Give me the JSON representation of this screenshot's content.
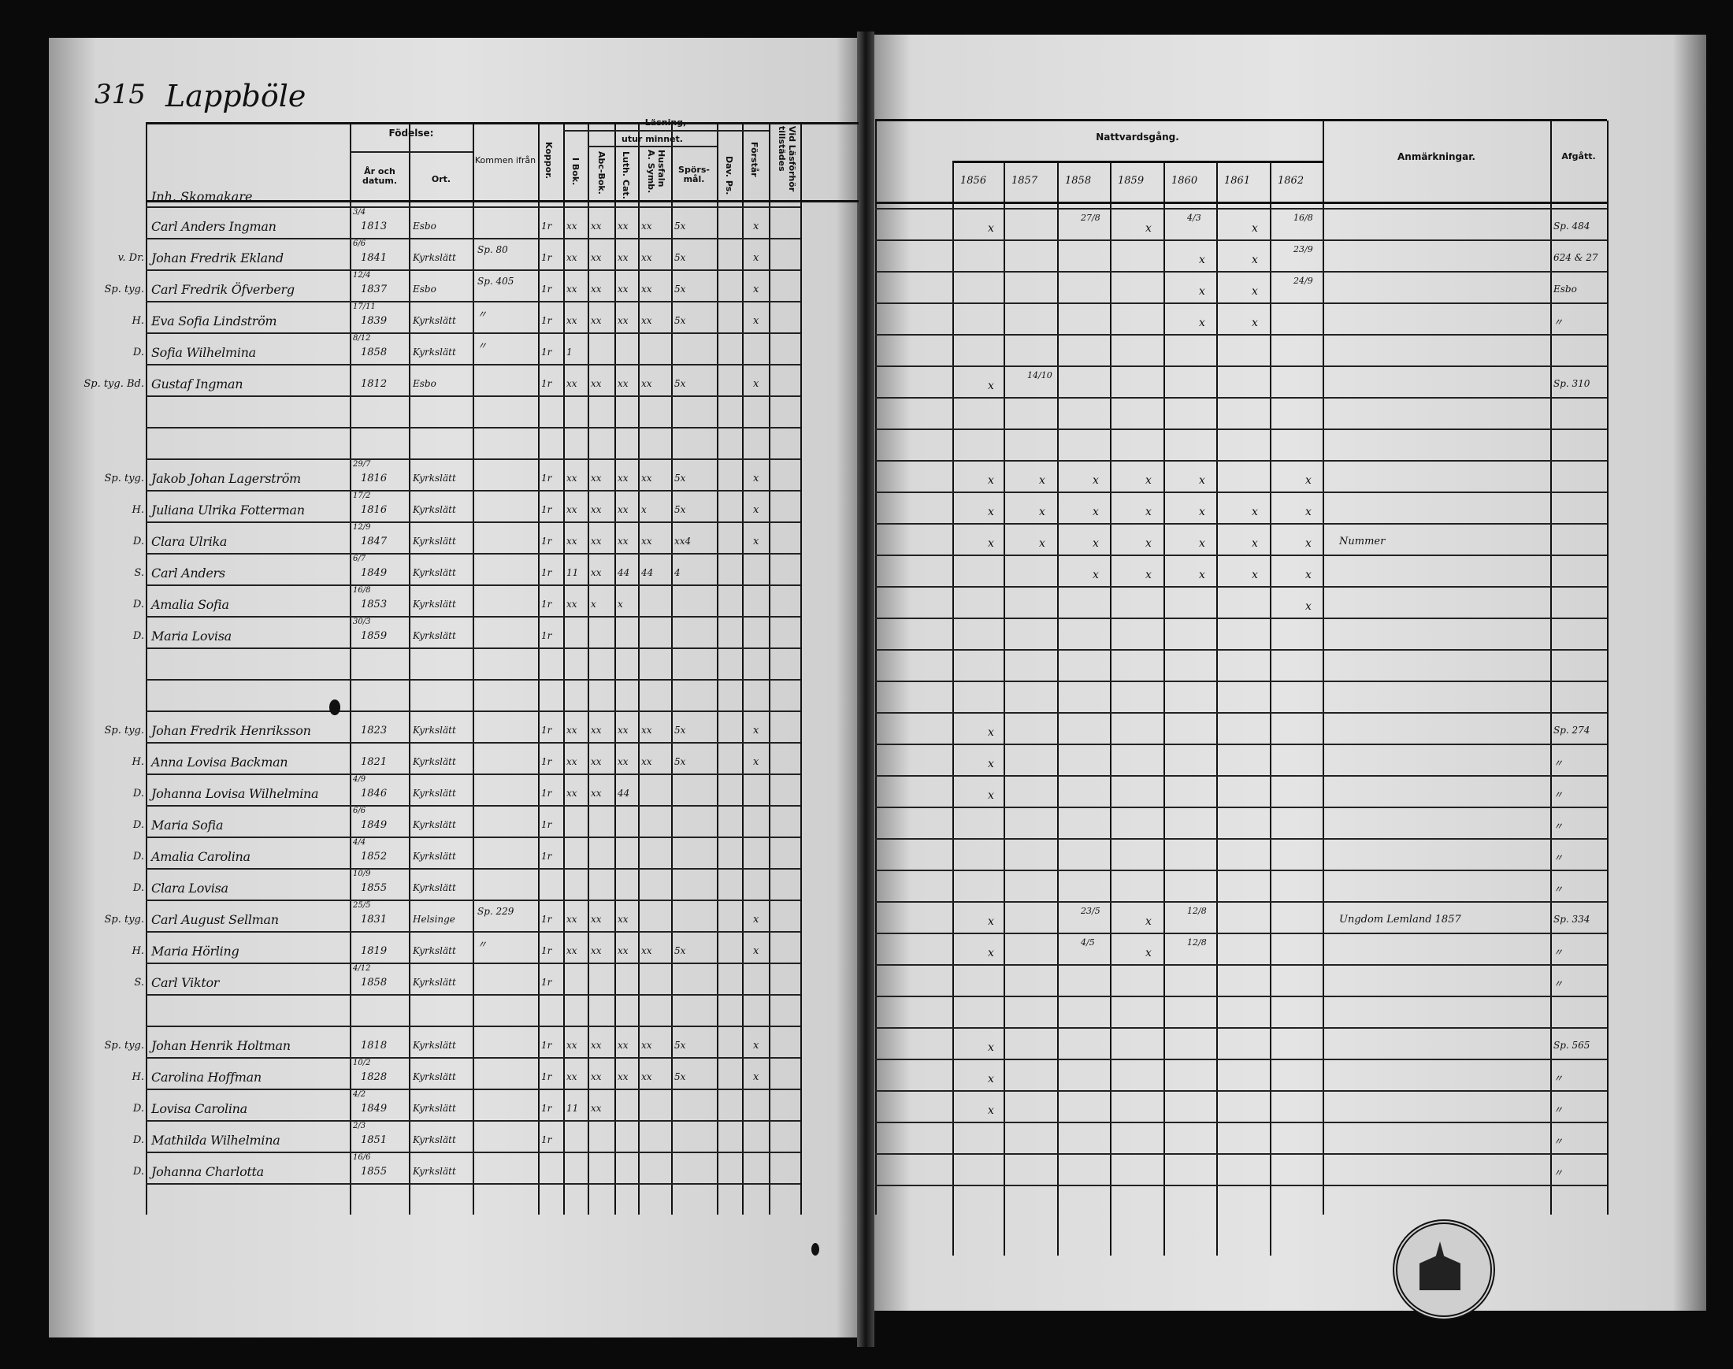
{
  "page_number": "315",
  "village": "Lappböle",
  "left_headers": {
    "fodelse": "Födelse:",
    "ar_datum": "År och datum.",
    "ort": "Ort.",
    "kommen_ifran": "Kommen ifrån",
    "koppor": "Koppor.",
    "lasning": "Läsning,",
    "utur_minnet": "utur minnet.",
    "i_bok": "I Bok.",
    "abc_bok": "Abc-Bok.",
    "luth_cat": "Luth. Cat.",
    "husfaln": "Husfaln A. Symb.",
    "sporsmal": "Spörs-mål.",
    "dav_ps": "Dav. Ps.",
    "forstar": "Förstår",
    "vid_lasforhor": "Vid Läsförhör tillstädes"
  },
  "right_headers": {
    "nattvardsgang": "Nattvardsgång.",
    "years": [
      "1856",
      "1857",
      "1858",
      "1859",
      "1860",
      "1861",
      "1862"
    ],
    "anmarkningar": "Anmärkningar.",
    "afgatt": "Afgått."
  },
  "section_title": "Inh. Skomakare",
  "rows": [
    {
      "line": 1,
      "prefix": "",
      "name": "Carl Anders Ingman",
      "date": "3/4",
      "year": "1813",
      "place": "Esbo",
      "from": "",
      "reading": [
        "1r",
        "xx",
        "xx",
        "xx",
        "xx",
        "5x"
      ],
      "forstar": "x",
      "communion": [
        "x",
        "",
        "27/8",
        "x",
        "4/3",
        "x",
        "16/8"
      ],
      "remark": "",
      "afgatt": "Sp. 484"
    },
    {
      "line": 2,
      "prefix": "v. Dr.",
      "name": "Johan Fredrik Ekland",
      "date": "6/6",
      "year": "1841",
      "place": "Kyrkslätt",
      "from": "Sp. 80",
      "reading": [
        "1r",
        "xx",
        "xx",
        "xx",
        "xx",
        "5x"
      ],
      "forstar": "x",
      "communion": [
        "",
        "",
        "",
        "",
        "x",
        "x",
        "23/9"
      ],
      "remark": "",
      "afgatt": "624 & 27"
    },
    {
      "line": 3,
      "prefix": "Sp. tyg.",
      "name": "Carl Fredrik Öfverberg",
      "date": "12/4",
      "year": "1837",
      "place": "Esbo",
      "from": "Sp. 405",
      "reading": [
        "1r",
        "xx",
        "xx",
        "xx",
        "xx",
        "5x"
      ],
      "forstar": "x",
      "communion": [
        "",
        "",
        "",
        "",
        "x",
        "x",
        "24/9"
      ],
      "remark": "",
      "afgatt": "Esbo"
    },
    {
      "line": 4,
      "prefix": "H.",
      "name": "Eva Sofia Lindström",
      "date": "17/11",
      "year": "1839",
      "place": "Kyrkslätt",
      "from": "〃",
      "reading": [
        "1r",
        "xx",
        "xx",
        "xx",
        "xx",
        "5x"
      ],
      "forstar": "x",
      "communion": [
        "",
        "",
        "",
        "",
        "x",
        "x",
        ""
      ],
      "remark": "",
      "afgatt": "〃"
    },
    {
      "line": 5,
      "prefix": "D.",
      "name": "Sofia Wilhelmina",
      "date": "8/12",
      "year": "1858",
      "place": "Kyrkslätt",
      "from": "〃",
      "reading": [
        "1r",
        "1",
        "",
        "",
        "",
        ""
      ],
      "forstar": "",
      "communion": [
        "",
        "",
        "",
        "",
        "",
        "",
        ""
      ],
      "remark": "",
      "afgatt": ""
    },
    {
      "line": 6,
      "prefix": "Sp. tyg. Bd.",
      "name": "Gustaf Ingman",
      "date": "",
      "year": "1812",
      "place": "Esbo",
      "from": "",
      "reading": [
        "1r",
        "xx",
        "xx",
        "xx",
        "xx",
        "5x"
      ],
      "forstar": "x",
      "communion": [
        "x",
        "14/10",
        "",
        "",
        "",
        "",
        ""
      ],
      "remark": "",
      "afgatt": "Sp. 310"
    },
    {
      "line": 9,
      "prefix": "Sp. tyg.",
      "name": "Jakob Johan Lagerström",
      "date": "29/7",
      "year": "1816",
      "place": "Kyrkslätt",
      "from": "",
      "reading": [
        "1r",
        "xx",
        "xx",
        "xx",
        "xx",
        "5x"
      ],
      "forstar": "x",
      "communion": [
        "x",
        "x",
        "x",
        "x",
        "x",
        "",
        "x"
      ],
      "remark": "",
      "afgatt": ""
    },
    {
      "line": 10,
      "prefix": "H.",
      "name": "Juliana Ulrika Fotterman",
      "date": "17/2",
      "year": "1816",
      "place": "Kyrkslätt",
      "from": "",
      "reading": [
        "1r",
        "xx",
        "xx",
        "xx",
        "x",
        "5x"
      ],
      "forstar": "x",
      "communion": [
        "x",
        "x",
        "x",
        "x",
        "x",
        "x",
        "x"
      ],
      "remark": "",
      "afgatt": ""
    },
    {
      "line": 11,
      "prefix": "D.",
      "name": "Clara Ulrika",
      "date": "12/9",
      "year": "1847",
      "place": "Kyrkslätt",
      "from": "",
      "reading": [
        "1r",
        "xx",
        "xx",
        "xx",
        "xx",
        "xx4"
      ],
      "forstar": "x",
      "communion": [
        "x",
        "x",
        "x",
        "x",
        "x",
        "x",
        "x"
      ],
      "remark": "Nummer",
      "afgatt": ""
    },
    {
      "line": 12,
      "prefix": "S.",
      "name": "Carl Anders",
      "date": "6/7",
      "year": "1849",
      "place": "Kyrkslätt",
      "from": "",
      "reading": [
        "1r",
        "11",
        "xx",
        "44",
        "44",
        "4"
      ],
      "forstar": "",
      "communion": [
        "",
        "",
        "x",
        "x",
        "x",
        "x",
        "x"
      ],
      "remark": "",
      "afgatt": ""
    },
    {
      "line": 13,
      "prefix": "D.",
      "name": "Amalia Sofia",
      "date": "16/8",
      "year": "1853",
      "place": "Kyrkslätt",
      "from": "",
      "reading": [
        "1r",
        "xx",
        "x",
        "x",
        "",
        ""
      ],
      "forstar": "",
      "communion": [
        "",
        "",
        "",
        "",
        "",
        "",
        "x"
      ],
      "remark": "",
      "afgatt": ""
    },
    {
      "line": 14,
      "prefix": "D.",
      "name": "Maria Lovisa",
      "date": "30/3",
      "year": "1859",
      "place": "Kyrkslätt",
      "from": "",
      "reading": [
        "1r",
        "",
        "",
        "",
        "",
        ""
      ],
      "forstar": "",
      "communion": [
        "",
        "",
        "",
        "",
        "",
        "",
        ""
      ],
      "remark": "",
      "afgatt": ""
    },
    {
      "line": 17,
      "prefix": "Sp. tyg.",
      "name": "Johan Fredrik Henriksson",
      "date": "",
      "year": "1823",
      "place": "Kyrkslätt",
      "from": "",
      "reading": [
        "1r",
        "xx",
        "xx",
        "xx",
        "xx",
        "5x"
      ],
      "forstar": "x",
      "communion": [
        "x",
        "",
        "",
        "",
        "",
        "",
        ""
      ],
      "remark": "",
      "afgatt": "Sp. 274"
    },
    {
      "line": 18,
      "prefix": "H.",
      "name": "Anna Lovisa Backman",
      "date": "",
      "year": "1821",
      "place": "Kyrkslätt",
      "from": "",
      "reading": [
        "1r",
        "xx",
        "xx",
        "xx",
        "xx",
        "5x"
      ],
      "forstar": "x",
      "communion": [
        "x",
        "",
        "",
        "",
        "",
        "",
        ""
      ],
      "remark": "",
      "afgatt": "〃"
    },
    {
      "line": 19,
      "prefix": "D.",
      "name": "Johanna Lovisa Wilhelmina",
      "date": "4/9",
      "year": "1846",
      "place": "Kyrkslätt",
      "from": "",
      "reading": [
        "1r",
        "xx",
        "xx",
        "44",
        "",
        ""
      ],
      "forstar": "",
      "communion": [
        "x",
        "",
        "",
        "",
        "",
        "",
        ""
      ],
      "remark": "",
      "afgatt": "〃"
    },
    {
      "line": 20,
      "prefix": "D.",
      "name": "Maria Sofia",
      "date": "6/6",
      "year": "1849",
      "place": "Kyrkslätt",
      "from": "",
      "reading": [
        "1r",
        "",
        "",
        "",
        "",
        ""
      ],
      "forstar": "",
      "communion": [
        "",
        "",
        "",
        "",
        "",
        "",
        ""
      ],
      "remark": "",
      "afgatt": "〃"
    },
    {
      "line": 21,
      "prefix": "D.",
      "name": "Amalia Carolina",
      "date": "4/4",
      "year": "1852",
      "place": "Kyrkslätt",
      "from": "",
      "reading": [
        "1r",
        "",
        "",
        "",
        "",
        ""
      ],
      "forstar": "",
      "communion": [
        "",
        "",
        "",
        "",
        "",
        "",
        ""
      ],
      "remark": "",
      "afgatt": "〃"
    },
    {
      "line": 22,
      "prefix": "D.",
      "name": "Clara Lovisa",
      "date": "10/9",
      "year": "1855",
      "place": "Kyrkslätt",
      "from": "",
      "reading": [
        "",
        "",
        "",
        "",
        "",
        ""
      ],
      "forstar": "",
      "communion": [
        "",
        "",
        "",
        "",
        "",
        "",
        ""
      ],
      "remark": "",
      "afgatt": "〃"
    },
    {
      "line": 23,
      "prefix": "Sp. tyg.",
      "name": "Carl August Sellman",
      "date": "25/5",
      "year": "1831",
      "place": "Helsinge",
      "from": "Sp. 229",
      "reading": [
        "1r",
        "xx",
        "xx",
        "xx",
        "",
        ""
      ],
      "forstar": "x",
      "communion": [
        "x",
        "",
        "23/5",
        "x",
        "12/8",
        "",
        ""
      ],
      "remark": "Ungdom Lemland 1857",
      "afgatt": "Sp. 334"
    },
    {
      "line": 24,
      "prefix": "H.",
      "name": "Maria Hörling",
      "date": "",
      "year": "1819",
      "place": "Kyrkslätt",
      "from": "〃",
      "reading": [
        "1r",
        "xx",
        "xx",
        "xx",
        "xx",
        "5x"
      ],
      "forstar": "x",
      "communion": [
        "x",
        "",
        "4/5",
        "x",
        "12/8",
        "",
        ""
      ],
      "remark": "",
      "afgatt": "〃"
    },
    {
      "line": 25,
      "prefix": "S.",
      "name": "Carl Viktor",
      "date": "4/12",
      "year": "1858",
      "place": "Kyrkslätt",
      "from": "",
      "reading": [
        "1r",
        "",
        "",
        "",
        "",
        ""
      ],
      "forstar": "",
      "communion": [
        "",
        "",
        "",
        "",
        "",
        "",
        ""
      ],
      "remark": "",
      "afgatt": "〃"
    },
    {
      "line": 27,
      "prefix": "Sp. tyg.",
      "name": "Johan Henrik Holtman",
      "date": "",
      "year": "1818",
      "place": "Kyrkslätt",
      "from": "",
      "reading": [
        "1r",
        "xx",
        "xx",
        "xx",
        "xx",
        "5x"
      ],
      "forstar": "x",
      "communion": [
        "x",
        "",
        "",
        "",
        "",
        "",
        ""
      ],
      "remark": "",
      "afgatt": "Sp. 565"
    },
    {
      "line": 28,
      "prefix": "H.",
      "name": "Carolina Hoffman",
      "date": "10/2",
      "year": "1828",
      "place": "Kyrkslätt",
      "from": "",
      "reading": [
        "1r",
        "xx",
        "xx",
        "xx",
        "xx",
        "5x"
      ],
      "forstar": "x",
      "communion": [
        "x",
        "",
        "",
        "",
        "",
        "",
        ""
      ],
      "remark": "",
      "afgatt": "〃"
    },
    {
      "line": 29,
      "prefix": "D.",
      "name": "Lovisa Carolina",
      "date": "4/2",
      "year": "1849",
      "place": "Kyrkslätt",
      "from": "",
      "reading": [
        "1r",
        "11",
        "xx",
        "",
        "",
        ""
      ],
      "forstar": "",
      "communion": [
        "x",
        "",
        "",
        "",
        "",
        "",
        ""
      ],
      "remark": "",
      "afgatt": "〃"
    },
    {
      "line": 30,
      "prefix": "D.",
      "name": "Mathilda Wilhelmina",
      "date": "2/3",
      "year": "1851",
      "place": "Kyrkslätt",
      "from": "",
      "reading": [
        "1r",
        "",
        "",
        "",
        "",
        ""
      ],
      "forstar": "",
      "communion": [
        "",
        "",
        "",
        "",
        "",
        "",
        ""
      ],
      "remark": "",
      "afgatt": "〃"
    },
    {
      "line": 31,
      "prefix": "D.",
      "name": "Johanna Charlotta",
      "date": "16/6",
      "year": "1855",
      "place": "Kyrkslätt",
      "from": "",
      "reading": [
        "",
        "",
        "",
        "",
        "",
        ""
      ],
      "forstar": "",
      "communion": [
        "",
        "",
        "",
        "",
        "",
        "",
        ""
      ],
      "remark": "",
      "afgatt": "〃"
    }
  ],
  "colors": {
    "paper": "#dcdcdc",
    "ink": "#111111",
    "background": "#0a0a0a"
  }
}
